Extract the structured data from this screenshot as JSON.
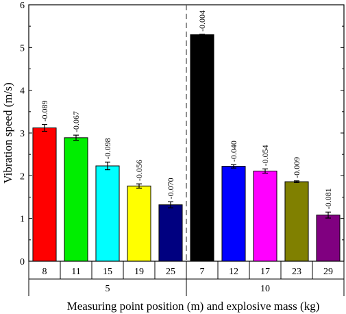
{
  "chart_data": {
    "type": "bar",
    "ylabel": "Vibration speed (m/s)",
    "xlabel": "Measuring point position (m) and explosive mass (kg)",
    "ylim": [
      0,
      6
    ],
    "yticks": [
      "0",
      "1",
      "2",
      "3",
      "4",
      "5",
      "6"
    ],
    "grid": false,
    "legend": "none",
    "groups": [
      {
        "label": "5",
        "bars": [
          {
            "category": "8",
            "value": 3.12,
            "error": 0.08,
            "label": "-0.089",
            "color": "#ff0000"
          },
          {
            "category": "11",
            "value": 2.89,
            "error": 0.06,
            "label": "-0.067",
            "color": "#00ee00"
          },
          {
            "category": "15",
            "value": 2.23,
            "error": 0.09,
            "label": "-0.098",
            "color": "#00ffff"
          },
          {
            "category": "19",
            "value": 1.76,
            "error": 0.05,
            "label": "-0.056",
            "color": "#ffff00"
          },
          {
            "category": "25",
            "value": 1.32,
            "error": 0.07,
            "label": "-0.070",
            "color": "#000080"
          }
        ]
      },
      {
        "label": "10",
        "bars": [
          {
            "category": "7",
            "value": 5.3,
            "error": 0.01,
            "label": "-0.004",
            "color": "#000000"
          },
          {
            "category": "12",
            "value": 2.22,
            "error": 0.04,
            "label": "-0.040",
            "color": "#0000ff"
          },
          {
            "category": "17",
            "value": 2.11,
            "error": 0.05,
            "label": "-0.054",
            "color": "#ff00ff"
          },
          {
            "category": "23",
            "value": 1.86,
            "error": 0.02,
            "label": "-0.009",
            "color": "#808000"
          },
          {
            "category": "29",
            "value": 1.08,
            "error": 0.07,
            "label": "-0.081",
            "color": "#800080"
          }
        ]
      }
    ]
  }
}
